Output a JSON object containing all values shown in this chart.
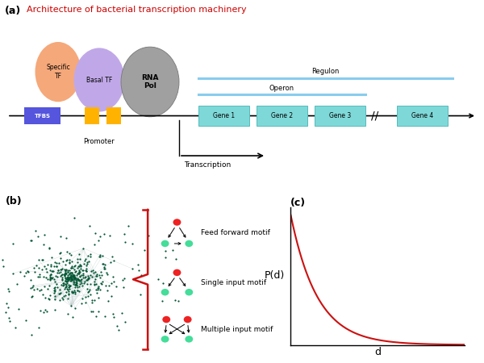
{
  "panel_a_title": "Architecture of bacterial transcription machinery",
  "panel_labels": [
    "(a)",
    "(b)",
    "(c)"
  ],
  "colors": {
    "specific_tf": "#F5A87A",
    "basal_tf": "#C0A8E8",
    "rna_pol": "#A0A0A0",
    "tfbs": "#5555DD",
    "promoter_box": "#FFB300",
    "gene_box": "#7FD8D8",
    "gene_border": "#55BBBB",
    "regulon_line": "#88CCEE",
    "operon_line": "#88CCEE",
    "title_color": "#CC0000",
    "dna_line": "#000000",
    "motif_red": "#EE2222",
    "motif_green": "#44DD99",
    "network_node": "#005533",
    "brace_red": "#CC1111",
    "curve_red": "#CC1111",
    "edge_gray": "#AABBBB"
  },
  "gene_labels": [
    "Gene 1",
    "Gene 2",
    "Gene 3",
    "Gene 4"
  ],
  "motif_labels": [
    "Feed forward motif",
    "Single input motif",
    "Multiple input motif"
  ],
  "ylabel_c": "P(d)",
  "xlabel_c": "d"
}
